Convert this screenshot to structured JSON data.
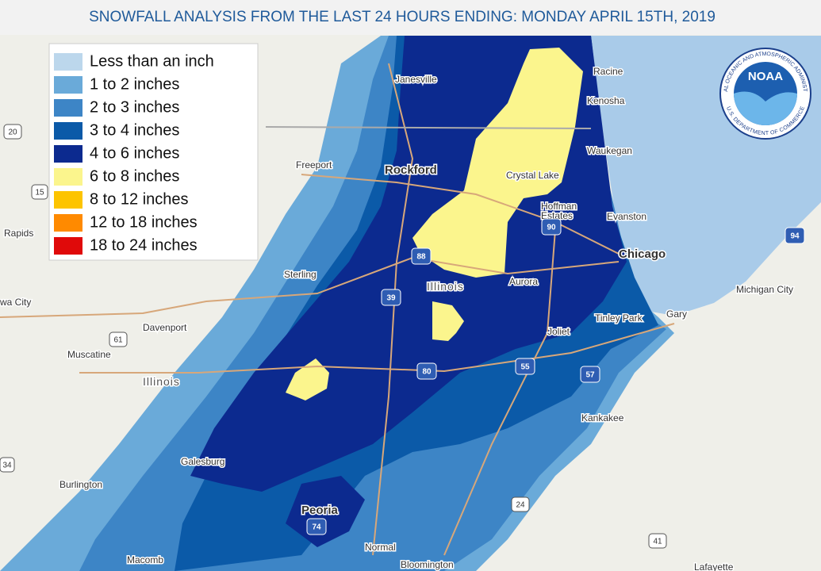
{
  "header": {
    "title": "SNOWFALL ANALYSIS FROM THE LAST 24 HOURS ENDING: MONDAY APRIL 15TH, 2019"
  },
  "legend": {
    "items": [
      {
        "label": "Less than an inch",
        "color": "#bcd7ec"
      },
      {
        "label": "1 to 2 inches",
        "color": "#6aaad9"
      },
      {
        "label": "2 to 3 inches",
        "color": "#3d85c6"
      },
      {
        "label": "3 to 4 inches",
        "color": "#0b5aa8"
      },
      {
        "label": "4 to 6 inches",
        "color": "#0c2a8f"
      },
      {
        "label": "6 to 8 inches",
        "color": "#fbf58d"
      },
      {
        "label": "8 to 12 inches",
        "color": "#fdc400"
      },
      {
        "label": "12 to 18 inches",
        "color": "#ff8a00"
      },
      {
        "label": "18 to 24 inches",
        "color": "#e00a0a"
      }
    ]
  },
  "map": {
    "cities": [
      "Janesville",
      "Racine",
      "Kenosha",
      "Waukegan",
      "Freeport",
      "Rockford",
      "Crystal Lake",
      "Hoffman",
      "Estates",
      "Evanston",
      "Rapids",
      "Chicago",
      "Sterling",
      "Aurora",
      "Michigan City",
      "wa City",
      "Davenport",
      "Gary",
      "Tinley Park",
      "Joliet",
      "Muscatine",
      "Kankakee",
      "Galesburg",
      "Burlington",
      "Peoria",
      "Normal",
      "Macomb",
      "Bloomington",
      "Lafayette"
    ],
    "state_labels": [
      "Illinois",
      "Illinois"
    ],
    "shields": [
      "20",
      "15",
      "61",
      "88",
      "90",
      "94",
      "39",
      "80",
      "55",
      "57",
      "74",
      "24",
      "41",
      "34"
    ]
  },
  "logo": {
    "name": "NOAA",
    "ring_top": "NATIONAL OCEANIC AND ATMOSPHERIC ADMINISTRATION",
    "ring_bottom": "U.S. DEPARTMENT OF COMMERCE"
  }
}
